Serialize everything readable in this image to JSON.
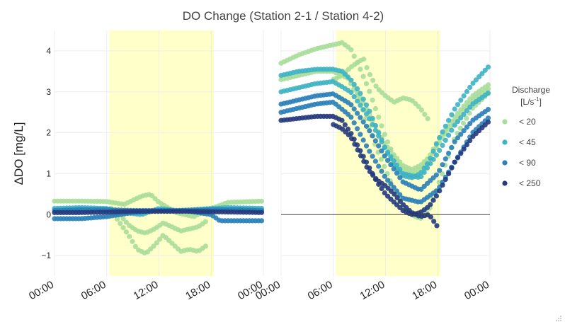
{
  "chart_data": {
    "type": "scatter",
    "title": "DO Change (Station 2-1 / Station 4-2)",
    "ylabel": "ΔDO [mg/L]",
    "xlabel": "",
    "ylim": [
      -1.5,
      4.5
    ],
    "yticks": [
      -1,
      0,
      1,
      2,
      3,
      4
    ],
    "ytick_labels": [
      "−1",
      "0",
      "1",
      "2",
      "3",
      "4"
    ],
    "xlim": [
      0,
      24
    ],
    "xticks": [
      0,
      6,
      12,
      18,
      24
    ],
    "xtick_labels": [
      "00:00",
      "06:00",
      "12:00",
      "18:00",
      "00:00"
    ],
    "daylight_hours": [
      6.3,
      18.3
    ],
    "legend": {
      "title_line1": "Discharge",
      "title_line2": "[L/s",
      "title_sup": "-1",
      "title_close": "]",
      "position": "right",
      "entries": [
        {
          "name": "< 20",
          "color": "#a8dd9a"
        },
        {
          "name": "< 45",
          "color": "#3db3c4"
        },
        {
          "name": "< 90",
          "color": "#2a7fb8"
        },
        {
          "name": "< 250",
          "color": "#253a7d"
        }
      ]
    },
    "panels": [
      {
        "series": [
          {
            "name": "< 20",
            "color": "#a8dd9a",
            "x": [
              0,
              3,
              6,
              8,
              9,
              10,
              11,
              12,
              14,
              16,
              18,
              20,
              24
            ],
            "y": [
              0.33,
              0.33,
              0.32,
              0.25,
              0.35,
              0.45,
              0.5,
              0.3,
              0.05,
              -0.05,
              0.15,
              0.3,
              0.33
            ]
          },
          {
            "name": "< 20",
            "color": "#a8dd9a",
            "x": [
              6.5,
              7.5,
              8.5,
              9.5,
              10.5,
              11.5,
              12.5,
              13.5,
              14.5,
              15.5,
              16.5,
              17.5
            ],
            "y": [
              0.1,
              -0.2,
              -0.5,
              -0.85,
              -0.95,
              -0.75,
              -0.5,
              -0.7,
              -0.9,
              -0.85,
              -0.9,
              -0.75
            ]
          },
          {
            "name": "< 20",
            "color": "#a8dd9a",
            "x": [
              6.5,
              7.5,
              8.5,
              9.5,
              10.5,
              11.5,
              12.5,
              13.5,
              14.5,
              15.5,
              16.5,
              17.5
            ],
            "y": [
              0.15,
              0.0,
              -0.25,
              -0.4,
              -0.45,
              -0.35,
              -0.2,
              -0.3,
              -0.4,
              -0.35,
              -0.3,
              -0.15
            ]
          },
          {
            "name": "< 45",
            "color": "#3db3c4",
            "x": [
              0,
              3,
              6,
              8,
              10,
              12,
              14,
              16,
              18,
              20,
              24
            ],
            "y": [
              0.15,
              0.17,
              0.15,
              0.05,
              0.0,
              0.15,
              0.1,
              0.12,
              0.15,
              0.17,
              0.15
            ]
          },
          {
            "name": "< 90",
            "color": "#2a7fb8",
            "x": [
              0,
              3,
              6,
              9,
              12,
              15,
              18,
              19,
              21,
              24
            ],
            "y": [
              -0.1,
              -0.1,
              -0.05,
              0.05,
              0.1,
              0.1,
              0.0,
              -0.15,
              -0.15,
              -0.15
            ]
          },
          {
            "name": "< 90",
            "color": "#2a7fb8",
            "x": [
              0,
              3,
              6,
              9,
              12,
              15,
              18,
              21,
              24
            ],
            "y": [
              0.1,
              0.12,
              0.12,
              0.1,
              0.1,
              0.1,
              0.12,
              0.12,
              0.1
            ]
          },
          {
            "name": "< 250",
            "color": "#253a7d",
            "x": [
              0,
              3,
              6,
              9,
              12,
              15,
              18,
              21,
              24
            ],
            "y": [
              0.05,
              0.05,
              0.06,
              0.08,
              0.08,
              0.08,
              0.07,
              0.06,
              0.05
            ]
          }
        ]
      },
      {
        "series": [
          {
            "name": "< 20",
            "color": "#a8dd9a",
            "x": [
              0,
              2,
              4,
              6,
              7,
              8,
              9,
              10,
              11,
              12,
              13,
              14,
              15,
              16,
              17,
              18,
              20,
              22,
              24
            ],
            "y": [
              3.7,
              3.9,
              4.05,
              4.15,
              4.2,
              4.05,
              3.6,
              3.1,
              2.5,
              1.9,
              1.4,
              1.1,
              1.0,
              1.1,
              1.3,
              1.7,
              2.3,
              2.8,
              3.1
            ]
          },
          {
            "name": "< 20",
            "color": "#a8dd9a",
            "x": [
              6,
              7,
              8,
              9,
              9.5,
              10,
              11,
              12,
              13,
              14,
              15,
              16,
              17
            ],
            "y": [
              3.3,
              3.4,
              3.6,
              3.75,
              3.8,
              3.5,
              3.1,
              2.9,
              2.75,
              2.85,
              2.8,
              2.6,
              2.3
            ]
          },
          {
            "name": "< 20",
            "color": "#a8dd9a",
            "x": [
              8,
              9,
              10,
              11,
              12,
              13,
              14,
              15,
              16,
              17,
              18,
              19,
              20,
              22,
              24
            ],
            "y": [
              3.2,
              2.8,
              2.2,
              1.6,
              1.1,
              0.6,
              0.2,
              0.0,
              -0.1,
              0.1,
              0.7,
              1.3,
              1.9,
              2.6,
              3.0
            ]
          },
          {
            "name": "< 20",
            "color": "#a8dd9a",
            "x": [
              0,
              2,
              4,
              6,
              8,
              10,
              12,
              14,
              15,
              16,
              17,
              18,
              20,
              22,
              24
            ],
            "y": [
              3.3,
              3.4,
              3.5,
              3.5,
              3.3,
              2.5,
              1.7,
              1.2,
              1.1,
              1.2,
              1.4,
              1.8,
              2.4,
              2.9,
              3.2
            ]
          },
          {
            "name": "< 45",
            "color": "#3db3c4",
            "x": [
              0,
              2,
              4,
              6,
              7,
              8,
              9,
              10,
              11,
              12,
              13,
              14,
              15,
              16,
              17,
              18,
              20,
              22,
              24
            ],
            "y": [
              3.4,
              3.5,
              3.55,
              3.55,
              3.5,
              3.3,
              3.0,
              2.6,
              2.1,
              1.6,
              1.2,
              0.95,
              0.9,
              1.0,
              1.3,
              1.8,
              2.6,
              3.2,
              3.65
            ]
          },
          {
            "name": "< 45",
            "color": "#3db3c4",
            "x": [
              0,
              2,
              4,
              6,
              8,
              10,
              12,
              14,
              16,
              18,
              20,
              22,
              24
            ],
            "y": [
              3.0,
              3.1,
              3.2,
              3.25,
              3.0,
              2.4,
              1.6,
              1.0,
              0.9,
              1.5,
              2.2,
              2.7,
              3.0
            ]
          },
          {
            "name": "< 90",
            "color": "#2a7fb8",
            "x": [
              0,
              2,
              4,
              6,
              8,
              10,
              12,
              14,
              16,
              18,
              20,
              22,
              24
            ],
            "y": [
              2.7,
              2.8,
              2.9,
              2.95,
              2.7,
              2.1,
              1.4,
              0.8,
              0.6,
              1.0,
              1.8,
              2.3,
              2.6
            ]
          },
          {
            "name": "< 90",
            "color": "#2a7fb8",
            "x": [
              0,
              2,
              4,
              6,
              8,
              10,
              12,
              14,
              16,
              18,
              20,
              22,
              24
            ],
            "y": [
              2.5,
              2.6,
              2.7,
              2.75,
              2.4,
              1.6,
              0.9,
              0.4,
              0.3,
              0.6,
              1.3,
              2.0,
              2.4
            ]
          },
          {
            "name": "< 250",
            "color": "#253a7d",
            "x": [
              0,
              2,
              4,
              6,
              7,
              8,
              9,
              10,
              11,
              12,
              13,
              14,
              15,
              16,
              17,
              18,
              19,
              20,
              22,
              24
            ],
            "y": [
              2.3,
              2.35,
              2.4,
              2.4,
              2.3,
              2.0,
              1.6,
              1.2,
              0.8,
              0.5,
              0.3,
              0.1,
              0.0,
              0.05,
              0.2,
              0.5,
              0.9,
              1.3,
              1.9,
              2.3
            ]
          },
          {
            "name": "< 250",
            "color": "#253a7d",
            "x": [
              6,
              7,
              8,
              9,
              10,
              11,
              12,
              13,
              14,
              15,
              16,
              17,
              18
            ],
            "y": [
              2.2,
              2.1,
              1.9,
              1.5,
              1.1,
              0.85,
              0.7,
              0.5,
              0.25,
              0.05,
              -0.05,
              0.0,
              -0.3
            ]
          }
        ]
      }
    ]
  }
}
